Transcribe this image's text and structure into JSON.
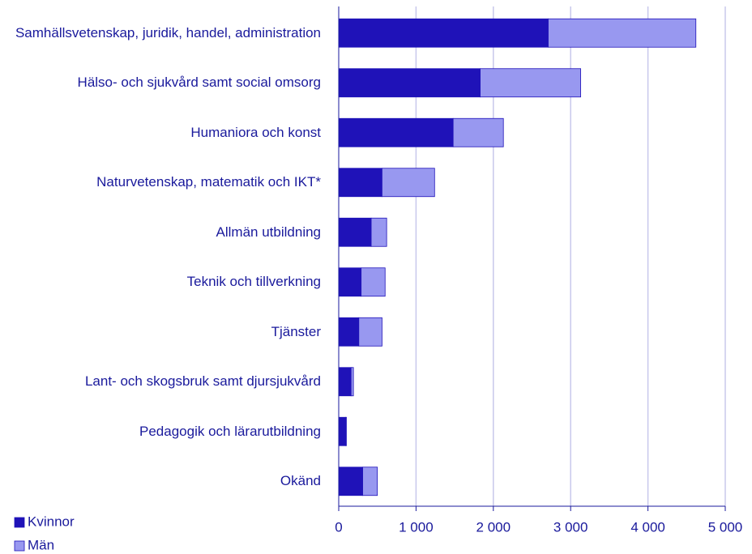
{
  "chart_data": {
    "type": "stacked-barh",
    "categories": [
      "Samhällsvetenskap, juridik, handel, administration",
      "Hälso- och sjukvård samt social omsorg",
      "Humaniora och konst",
      "Naturvetenskap, matematik och IKT*",
      "Allmän utbildning",
      "Teknik och tillverkning",
      "Tjänster",
      "Lant- och skogsbruk samt djursjukvård",
      "Pedagogik och lärarutbildning",
      "Okänd"
    ],
    "series": [
      {
        "name": "Kvinnor",
        "color": "#1f12b8",
        "values": [
          2710,
          1830,
          1480,
          560,
          420,
          290,
          260,
          160,
          90,
          310
        ]
      },
      {
        "name": "Män",
        "color": "#9898f0",
        "values": [
          1910,
          1300,
          650,
          680,
          200,
          310,
          300,
          30,
          10,
          190
        ]
      }
    ],
    "xlim": [
      0,
      5000
    ],
    "xticks": [
      0,
      {
        "value": 1000,
        "label": "1 000"
      },
      {
        "value": 2000,
        "label": "2 000"
      },
      {
        "value": 3000,
        "label": "3 000"
      },
      {
        "value": 4000,
        "label": "4 000"
      },
      {
        "value": 5000,
        "label": "5 000"
      }
    ],
    "grid": true,
    "legend": "bottom-left"
  }
}
